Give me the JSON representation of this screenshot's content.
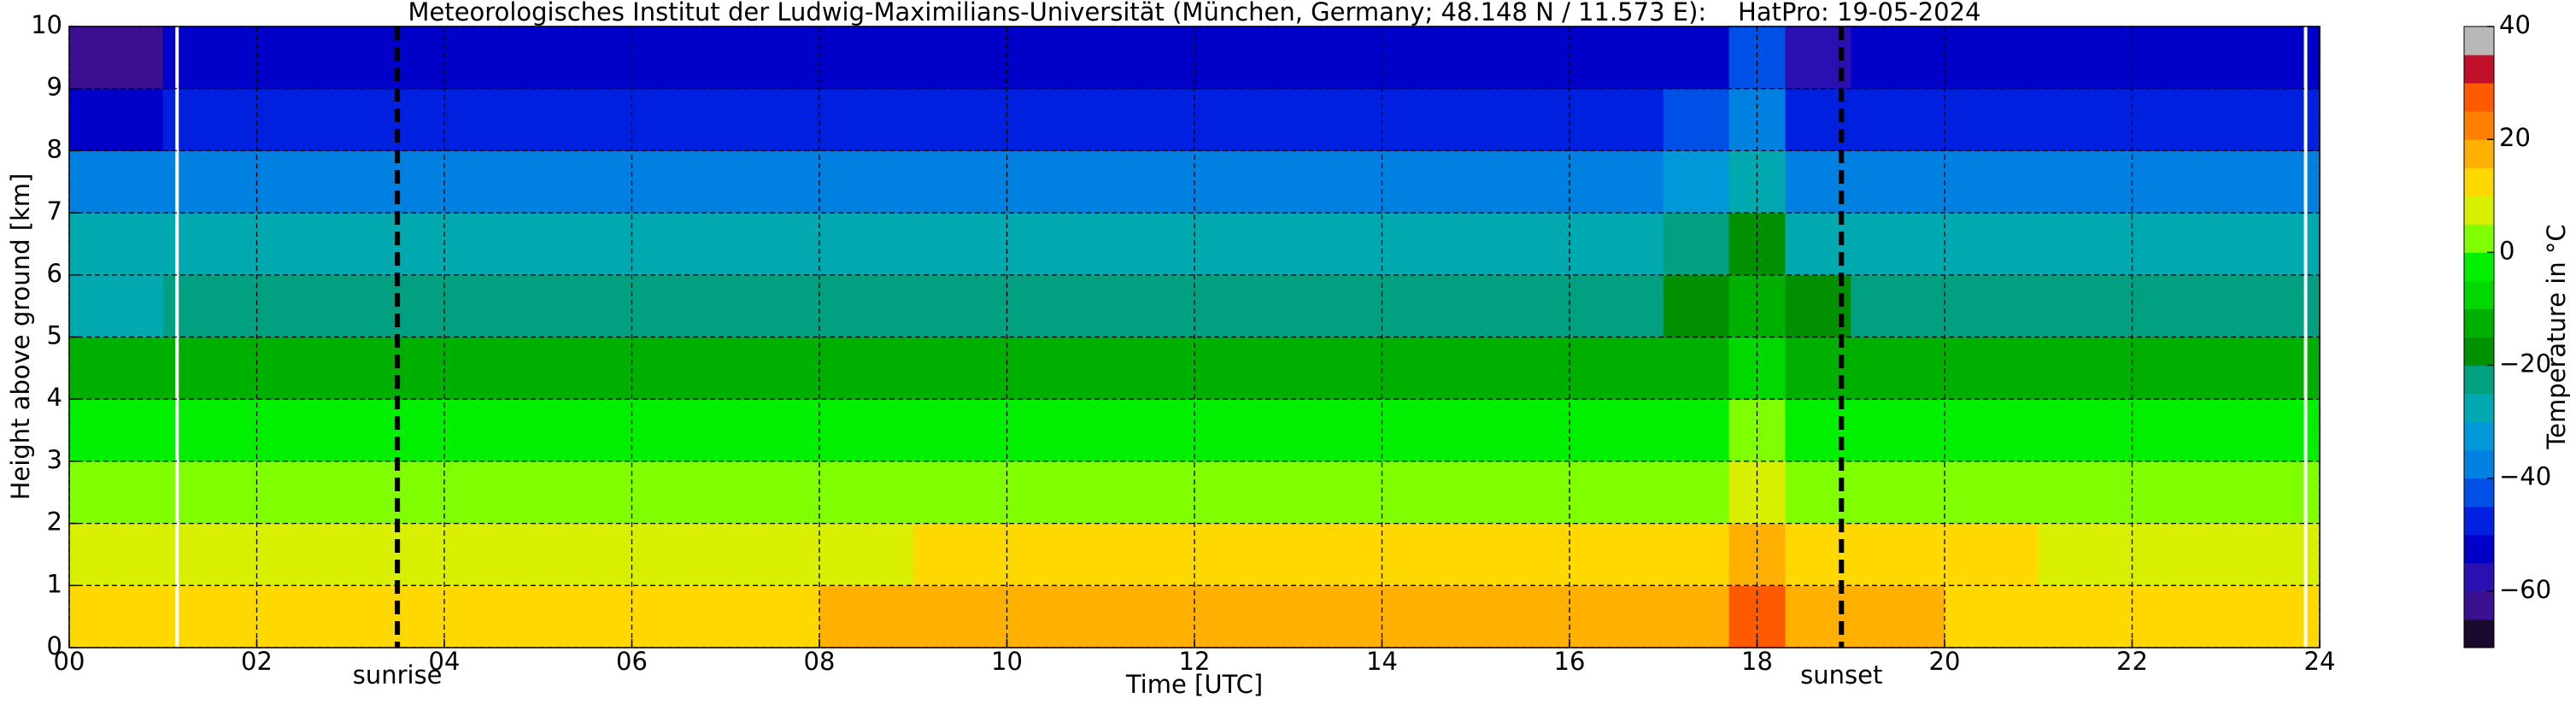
{
  "chart_data": {
    "type": "heatmap",
    "title": "Meteorologisches Institut der Ludwig-Maximilians-Universität (München, Germany; 48.148 N / 11.573 E):    HatPro: 19-05-2024",
    "xlabel": "Time [UTC]",
    "ylabel": "Height above ground [km]",
    "xlim": [
      0,
      24
    ],
    "ylim": [
      0,
      10
    ],
    "xticks": [
      {
        "value": 0,
        "label": "00"
      },
      {
        "value": 2,
        "label": "02"
      },
      {
        "value": 4,
        "label": "04"
      },
      {
        "value": 6,
        "label": "06"
      },
      {
        "value": 8,
        "label": "08"
      },
      {
        "value": 10,
        "label": "10"
      },
      {
        "value": 12,
        "label": "12"
      },
      {
        "value": 14,
        "label": "14"
      },
      {
        "value": 16,
        "label": "16"
      },
      {
        "value": 18,
        "label": "18"
      },
      {
        "value": 20,
        "label": "20"
      },
      {
        "value": 22,
        "label": "22"
      },
      {
        "value": 24,
        "label": "24"
      }
    ],
    "yticks": [
      0,
      1,
      2,
      3,
      4,
      5,
      6,
      7,
      8,
      9,
      10
    ],
    "grid": true,
    "x_edges": [
      0,
      1,
      2,
      3,
      4,
      5,
      6,
      7,
      8,
      9,
      10,
      11,
      12,
      13,
      14,
      15,
      16,
      17,
      17.7,
      18.3,
      19,
      20,
      21,
      22,
      23,
      24
    ],
    "y_edges": [
      0,
      1,
      2,
      3,
      4,
      5,
      6,
      7,
      8,
      9,
      10
    ],
    "z": [
      [
        13,
        13,
        12,
        12,
        12,
        12,
        13,
        14,
        15,
        15,
        16,
        16,
        17,
        17,
        18,
        18,
        18,
        18,
        28,
        16,
        15,
        14,
        13,
        13,
        13
      ],
      [
        9,
        9,
        8,
        8,
        8,
        8,
        8,
        9,
        9,
        10,
        10,
        10,
        11,
        11,
        11,
        11,
        11,
        11,
        17,
        11,
        10,
        10,
        9,
        9,
        9
      ],
      [
        4,
        3,
        3,
        3,
        3,
        3,
        3,
        3,
        3,
        3,
        4,
        4,
        4,
        4,
        4,
        4,
        4,
        4,
        9,
        4,
        3,
        3,
        3,
        3,
        3
      ],
      [
        -3,
        -4,
        -4,
        -4,
        -4,
        -4,
        -4,
        -4,
        -4,
        -4,
        -4,
        -4,
        -4,
        -4,
        -4,
        -4,
        -4,
        -4,
        2,
        -4,
        -4,
        -4,
        -4,
        -4,
        -4
      ],
      [
        -12,
        -13,
        -13,
        -13,
        -13,
        -13,
        -13,
        -13,
        -13,
        -13,
        -13,
        -13,
        -13,
        -13,
        -13,
        -13,
        -13,
        -12,
        -6,
        -13,
        -13,
        -13,
        -13,
        -13,
        -13
      ],
      [
        -27,
        -23,
        -21,
        -21,
        -21,
        -21,
        -21,
        -21,
        -21,
        -21,
        -21,
        -21,
        -21,
        -21,
        -21,
        -21,
        -21,
        -19,
        -12,
        -20,
        -21,
        -21,
        -21,
        -21,
        -21
      ],
      [
        -30,
        -28,
        -28,
        -28,
        -28,
        -28,
        -28,
        -28,
        -28,
        -28,
        -28,
        -28,
        -28,
        -28,
        -28,
        -28,
        -28,
        -25,
        -20,
        -27,
        -28,
        -28,
        -28,
        -28,
        -28
      ],
      [
        -38,
        -37,
        -37,
        -37,
        -37,
        -37,
        -37,
        -37,
        -37,
        -37,
        -37,
        -37,
        -37,
        -37,
        -37,
        -37,
        -37,
        -34,
        -30,
        -36,
        -37,
        -37,
        -37,
        -37,
        -37
      ],
      [
        -52,
        -48,
        -48,
        -48,
        -48,
        -48,
        -48,
        -48,
        -48,
        -48,
        -48,
        -48,
        -48,
        -48,
        -48,
        -48,
        -48,
        -45,
        -38,
        -47,
        -48,
        -48,
        -48,
        -48,
        -48
      ],
      [
        -62,
        -53,
        -53,
        -53,
        -53,
        -53,
        -53,
        -53,
        -53,
        -53,
        -53,
        -53,
        -53,
        -53,
        -53,
        -53,
        -53,
        -52,
        -42,
        -56,
        -53,
        -53,
        -53,
        -53,
        -53
      ]
    ],
    "white_lines": [
      1.15,
      23.85
    ],
    "annotations": [
      {
        "x": 3.5,
        "text": "sunrise"
      },
      {
        "x": 18.9,
        "text": "sunset"
      }
    ],
    "colorbar": {
      "label": "Temperature in °C",
      "levels": [
        -70,
        -65,
        -60,
        -55,
        -50,
        -45,
        -40,
        -35,
        -30,
        -25,
        -20,
        -15,
        -10,
        -5,
        0,
        5,
        10,
        15,
        20,
        25,
        30,
        35,
        40
      ],
      "colors": [
        "#1a0a2e",
        "#3a1090",
        "#2a10b0",
        "#0000c8",
        "#0020e0",
        "#0050e8",
        "#0080e0",
        "#0098d8",
        "#00a8b0",
        "#00a080",
        "#009000",
        "#00b000",
        "#00d800",
        "#00f000",
        "#80ff00",
        "#d8f000",
        "#ffd800",
        "#ffb000",
        "#ff8000",
        "#ff5a00",
        "#c0102a",
        "#b8b8b8"
      ],
      "ticks": [
        {
          "value": -60,
          "label": "−60"
        },
        {
          "value": -40,
          "label": "−40"
        },
        {
          "value": -20,
          "label": "−20"
        },
        0,
        20,
        40
      ]
    }
  }
}
